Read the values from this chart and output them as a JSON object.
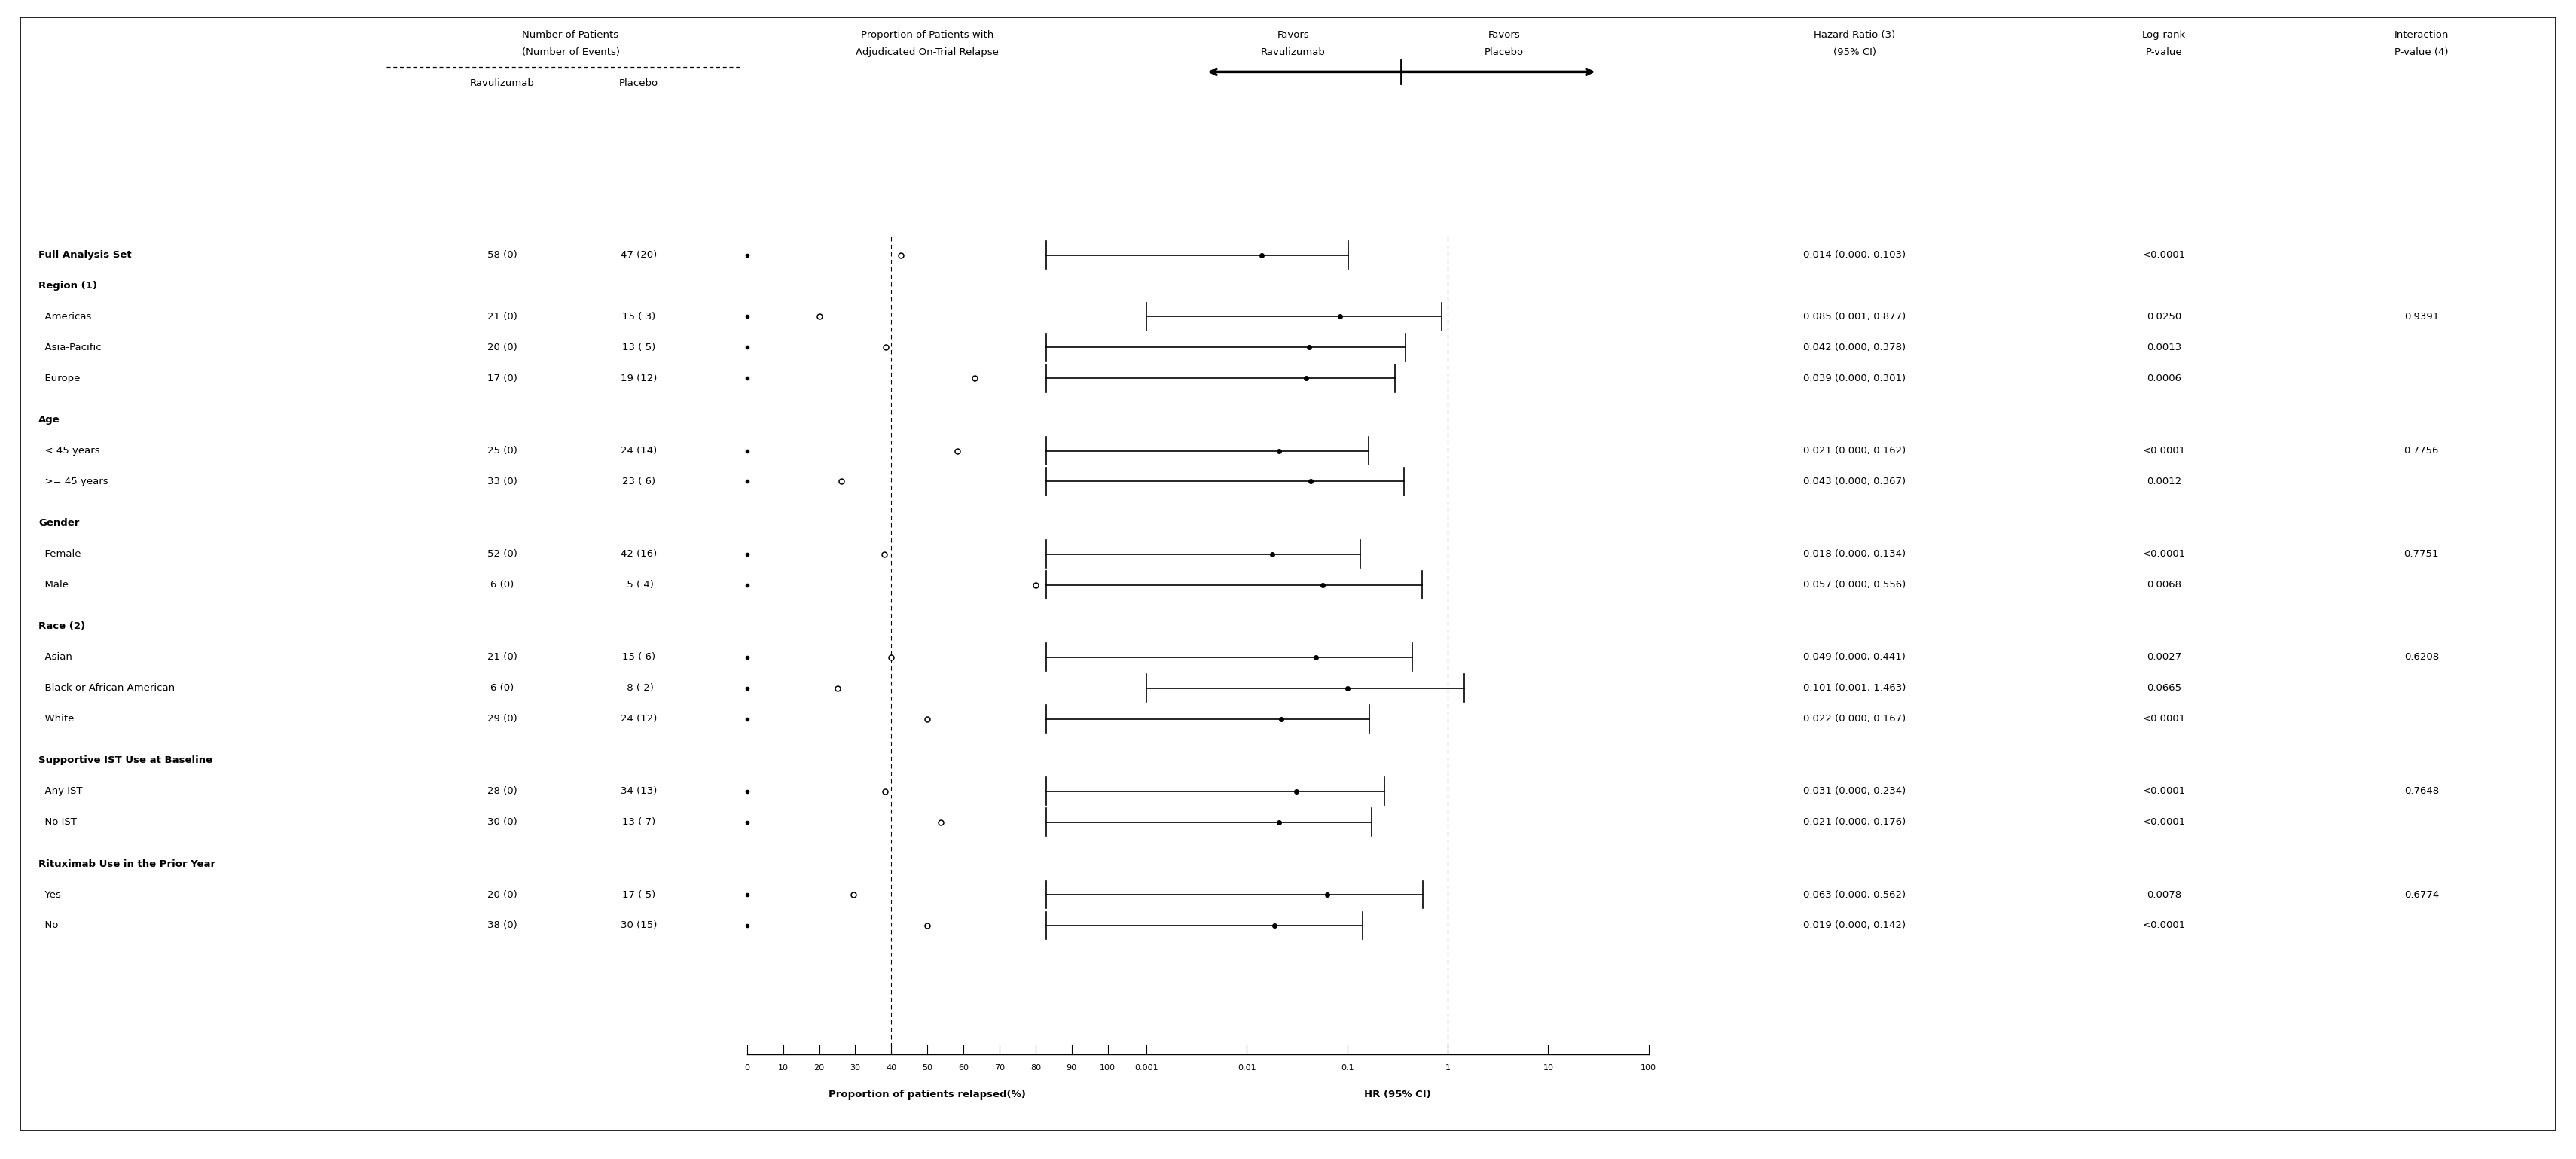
{
  "fig_width": 34.2,
  "fig_height": 15.39,
  "background_color": "#ffffff",
  "rows": [
    {
      "label": "Full Analysis Set",
      "indent": 0,
      "bold": true,
      "rav": "58 (0)",
      "pla": "47 (20)",
      "dot_rav": 0.0,
      "dot_pla": 42.6,
      "hr": 0.014,
      "ci_lo": 0.0001,
      "ci_hi": 0.103,
      "hr_text": "0.014 (0.000, 0.103)",
      "logrank": "<0.0001",
      "interaction": "",
      "spacer": false
    },
    {
      "label": "Region (1)",
      "indent": 0,
      "bold": true,
      "rav": "",
      "pla": "",
      "dot_rav": null,
      "dot_pla": null,
      "hr": null,
      "ci_lo": null,
      "ci_hi": null,
      "hr_text": "",
      "logrank": "",
      "interaction": "",
      "spacer": false
    },
    {
      "label": "  Americas",
      "indent": 1,
      "bold": false,
      "rav": "21 (0)",
      "pla": "15 ( 3)",
      "dot_rav": 0.0,
      "dot_pla": 20.0,
      "hr": 0.085,
      "ci_lo": 0.001,
      "ci_hi": 0.877,
      "hr_text": "0.085 (0.001, 0.877)",
      "logrank": "0.0250",
      "interaction": "0.9391",
      "spacer": false
    },
    {
      "label": "  Asia-Pacific",
      "indent": 1,
      "bold": false,
      "rav": "20 (0)",
      "pla": "13 ( 5)",
      "dot_rav": 0.0,
      "dot_pla": 38.5,
      "hr": 0.042,
      "ci_lo": 0.0001,
      "ci_hi": 0.378,
      "hr_text": "0.042 (0.000, 0.378)",
      "logrank": "0.0013",
      "interaction": "",
      "spacer": false
    },
    {
      "label": "  Europe",
      "indent": 1,
      "bold": false,
      "rav": "17 (0)",
      "pla": "19 (12)",
      "dot_rav": 0.0,
      "dot_pla": 63.2,
      "hr": 0.039,
      "ci_lo": 0.0001,
      "ci_hi": 0.301,
      "hr_text": "0.039 (0.000, 0.301)",
      "logrank": "0.0006",
      "interaction": "",
      "spacer": false
    },
    {
      "label": "",
      "indent": 0,
      "bold": false,
      "rav": "",
      "pla": "",
      "dot_rav": null,
      "dot_pla": null,
      "hr": null,
      "ci_lo": null,
      "ci_hi": null,
      "hr_text": "",
      "logrank": "",
      "interaction": "",
      "spacer": true
    },
    {
      "label": "Age",
      "indent": 0,
      "bold": true,
      "rav": "",
      "pla": "",
      "dot_rav": null,
      "dot_pla": null,
      "hr": null,
      "ci_lo": null,
      "ci_hi": null,
      "hr_text": "",
      "logrank": "",
      "interaction": "",
      "spacer": false
    },
    {
      "label": "  < 45 years",
      "indent": 1,
      "bold": false,
      "rav": "25 (0)",
      "pla": "24 (14)",
      "dot_rav": 0.0,
      "dot_pla": 58.3,
      "hr": 0.021,
      "ci_lo": 0.0001,
      "ci_hi": 0.162,
      "hr_text": "0.021 (0.000, 0.162)",
      "logrank": "<0.0001",
      "interaction": "0.7756",
      "spacer": false
    },
    {
      "label": "  >= 45 years",
      "indent": 1,
      "bold": false,
      "rav": "33 (0)",
      "pla": "23 ( 6)",
      "dot_rav": 0.0,
      "dot_pla": 26.1,
      "hr": 0.043,
      "ci_lo": 0.0001,
      "ci_hi": 0.367,
      "hr_text": "0.043 (0.000, 0.367)",
      "logrank": "0.0012",
      "interaction": "",
      "spacer": false
    },
    {
      "label": "",
      "indent": 0,
      "bold": false,
      "rav": "",
      "pla": "",
      "dot_rav": null,
      "dot_pla": null,
      "hr": null,
      "ci_lo": null,
      "ci_hi": null,
      "hr_text": "",
      "logrank": "",
      "interaction": "",
      "spacer": true
    },
    {
      "label": "Gender",
      "indent": 0,
      "bold": true,
      "rav": "",
      "pla": "",
      "dot_rav": null,
      "dot_pla": null,
      "hr": null,
      "ci_lo": null,
      "ci_hi": null,
      "hr_text": "",
      "logrank": "",
      "interaction": "",
      "spacer": false
    },
    {
      "label": "  Female",
      "indent": 1,
      "bold": false,
      "rav": "52 (0)",
      "pla": "42 (16)",
      "dot_rav": 0.0,
      "dot_pla": 38.1,
      "hr": 0.018,
      "ci_lo": 0.0001,
      "ci_hi": 0.134,
      "hr_text": "0.018 (0.000, 0.134)",
      "logrank": "<0.0001",
      "interaction": "0.7751",
      "spacer": false
    },
    {
      "label": "  Male",
      "indent": 1,
      "bold": false,
      "rav": "6 (0)",
      "pla": " 5 ( 4)",
      "dot_rav": 0.0,
      "dot_pla": 80.0,
      "hr": 0.057,
      "ci_lo": 0.0001,
      "ci_hi": 0.556,
      "hr_text": "0.057 (0.000, 0.556)",
      "logrank": "0.0068",
      "interaction": "",
      "spacer": false
    },
    {
      "label": "",
      "indent": 0,
      "bold": false,
      "rav": "",
      "pla": "",
      "dot_rav": null,
      "dot_pla": null,
      "hr": null,
      "ci_lo": null,
      "ci_hi": null,
      "hr_text": "",
      "logrank": "",
      "interaction": "",
      "spacer": true
    },
    {
      "label": "Race (2)",
      "indent": 0,
      "bold": true,
      "rav": "",
      "pla": "",
      "dot_rav": null,
      "dot_pla": null,
      "hr": null,
      "ci_lo": null,
      "ci_hi": null,
      "hr_text": "",
      "logrank": "",
      "interaction": "",
      "spacer": false
    },
    {
      "label": "  Asian",
      "indent": 1,
      "bold": false,
      "rav": "21 (0)",
      "pla": "15 ( 6)",
      "dot_rav": 0.0,
      "dot_pla": 40.0,
      "hr": 0.049,
      "ci_lo": 0.0001,
      "ci_hi": 0.441,
      "hr_text": "0.049 (0.000, 0.441)",
      "logrank": "0.0027",
      "interaction": "0.6208",
      "spacer": false
    },
    {
      "label": "  Black or African American",
      "indent": 1,
      "bold": false,
      "rav": "6 (0)",
      "pla": " 8 ( 2)",
      "dot_rav": 0.0,
      "dot_pla": 25.0,
      "hr": 0.101,
      "ci_lo": 0.001,
      "ci_hi": 1.463,
      "hr_text": "0.101 (0.001, 1.463)",
      "logrank": "0.0665",
      "interaction": "",
      "spacer": false
    },
    {
      "label": "  White",
      "indent": 1,
      "bold": false,
      "rav": "29 (0)",
      "pla": "24 (12)",
      "dot_rav": 0.0,
      "dot_pla": 50.0,
      "hr": 0.022,
      "ci_lo": 0.0001,
      "ci_hi": 0.167,
      "hr_text": "0.022 (0.000, 0.167)",
      "logrank": "<0.0001",
      "interaction": "",
      "spacer": false
    },
    {
      "label": "",
      "indent": 0,
      "bold": false,
      "rav": "",
      "pla": "",
      "dot_rav": null,
      "dot_pla": null,
      "hr": null,
      "ci_lo": null,
      "ci_hi": null,
      "hr_text": "",
      "logrank": "",
      "interaction": "",
      "spacer": true
    },
    {
      "label": "Supportive IST Use at Baseline",
      "indent": 0,
      "bold": true,
      "rav": "",
      "pla": "",
      "dot_rav": null,
      "dot_pla": null,
      "hr": null,
      "ci_lo": null,
      "ci_hi": null,
      "hr_text": "",
      "logrank": "",
      "interaction": "",
      "spacer": false
    },
    {
      "label": "  Any IST",
      "indent": 1,
      "bold": false,
      "rav": "28 (0)",
      "pla": "34 (13)",
      "dot_rav": 0.0,
      "dot_pla": 38.2,
      "hr": 0.031,
      "ci_lo": 0.0001,
      "ci_hi": 0.234,
      "hr_text": "0.031 (0.000, 0.234)",
      "logrank": "<0.0001",
      "interaction": "0.7648",
      "spacer": false
    },
    {
      "label": "  No IST",
      "indent": 1,
      "bold": false,
      "rav": "30 (0)",
      "pla": "13 ( 7)",
      "dot_rav": 0.0,
      "dot_pla": 53.8,
      "hr": 0.021,
      "ci_lo": 0.0001,
      "ci_hi": 0.176,
      "hr_text": "0.021 (0.000, 0.176)",
      "logrank": "<0.0001",
      "interaction": "",
      "spacer": false
    },
    {
      "label": "",
      "indent": 0,
      "bold": false,
      "rav": "",
      "pla": "",
      "dot_rav": null,
      "dot_pla": null,
      "hr": null,
      "ci_lo": null,
      "ci_hi": null,
      "hr_text": "",
      "logrank": "",
      "interaction": "",
      "spacer": true
    },
    {
      "label": "Rituximab Use in the Prior Year",
      "indent": 0,
      "bold": true,
      "rav": "",
      "pla": "",
      "dot_rav": null,
      "dot_pla": null,
      "hr": null,
      "ci_lo": null,
      "ci_hi": null,
      "hr_text": "",
      "logrank": "",
      "interaction": "",
      "spacer": false
    },
    {
      "label": "  Yes",
      "indent": 1,
      "bold": false,
      "rav": "20 (0)",
      "pla": "17 ( 5)",
      "dot_rav": 0.0,
      "dot_pla": 29.4,
      "hr": 0.063,
      "ci_lo": 0.0001,
      "ci_hi": 0.562,
      "hr_text": "0.063 (0.000, 0.562)",
      "logrank": "0.0078",
      "interaction": "0.6774",
      "spacer": false
    },
    {
      "label": "  No",
      "indent": 1,
      "bold": false,
      "rav": "38 (0)",
      "pla": "30 (15)",
      "dot_rav": 0.0,
      "dot_pla": 50.0,
      "hr": 0.019,
      "ci_lo": 0.0001,
      "ci_hi": 0.142,
      "hr_text": "0.019 (0.000, 0.142)",
      "logrank": "<0.0001",
      "interaction": "",
      "spacer": false
    }
  ],
  "prop_ticks": [
    0,
    10,
    20,
    30,
    40,
    50,
    60,
    70,
    80,
    90,
    100
  ],
  "hr_ticks": [
    0.001,
    0.01,
    0.1,
    1,
    10,
    100
  ],
  "hr_tick_labels": [
    "0.001",
    "0.01",
    "0.1",
    "1",
    "10",
    "100"
  ]
}
